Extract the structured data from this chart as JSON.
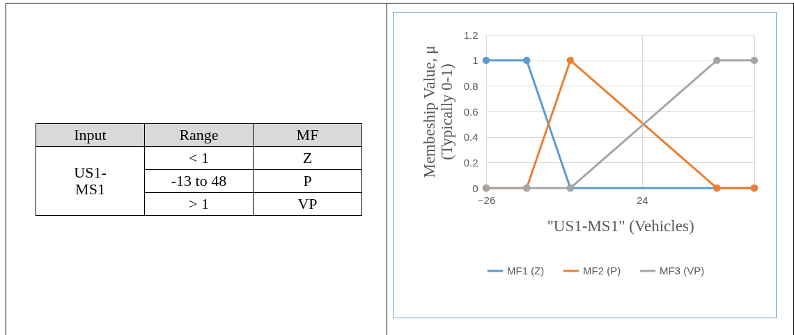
{
  "chart_data": [
    {
      "type": "other",
      "annotations": [
        "Input",
        "Range",
        "MF",
        "US1-\nMS1",
        "< 1",
        "Z",
        "-13 to 48",
        "P",
        "> 1",
        "VP"
      ]
    },
    {
      "type": "line",
      "xlabel": "\"US1-MS1\"  (Vehicles)",
      "ylabel": "Membeship  Value,  μ\n(Typically  0-1)",
      "xlim": [
        -26,
        60
      ],
      "xticks": [
        -26,
        24
      ],
      "ylim": [
        0,
        1.2
      ],
      "yticks": [
        0,
        0.2,
        0.4,
        0.6,
        0.8,
        1,
        1.2
      ],
      "grid": true,
      "legend": "bottom",
      "marker": "circle",
      "line_style": "solid",
      "series": [
        {
          "name": "MF1 (Z)",
          "color": "#5b9bd5",
          "x": [
            -26,
            -13,
            1,
            60
          ],
          "values": [
            1,
            1,
            0,
            0
          ]
        },
        {
          "name": "MF2 (P)",
          "color": "#ed7d31",
          "x": [
            -26,
            -13,
            1,
            48,
            60
          ],
          "values": [
            0,
            0,
            1,
            0,
            0
          ]
        },
        {
          "name": "MF3 (VP)",
          "color": "#a5a5a5",
          "x": [
            -26,
            -13,
            1,
            48,
            60
          ],
          "values": [
            0,
            0,
            0,
            1,
            1
          ]
        }
      ]
    }
  ]
}
